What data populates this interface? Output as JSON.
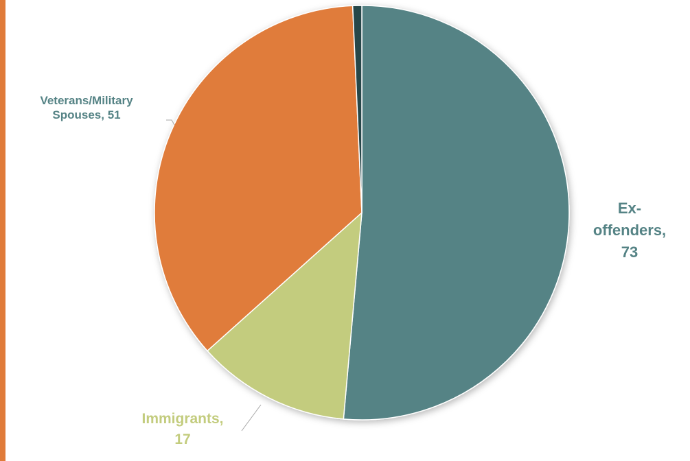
{
  "chart_data": {
    "type": "pie",
    "title": "",
    "slices": [
      {
        "label_lines": [
          "Ex-",
          "offenders,",
          "73"
        ],
        "value": 73,
        "color": "#558385"
      },
      {
        "label_lines": [
          "Immigrants,",
          "17"
        ],
        "value": 17,
        "color": "#C3CC7E"
      },
      {
        "label_lines": [
          "Veterans/Military",
          "Spouses, 51"
        ],
        "value": 51,
        "color": "#E07B3A"
      },
      {
        "label_lines": [],
        "value": 1,
        "color": "#27474A"
      }
    ],
    "start_angle_deg": 0,
    "direction": "clockwise",
    "legend": "none",
    "label_color": "#558385",
    "immigrants_label_color": "#C3CC7E",
    "accent_bar_color": "#E07B3A"
  }
}
